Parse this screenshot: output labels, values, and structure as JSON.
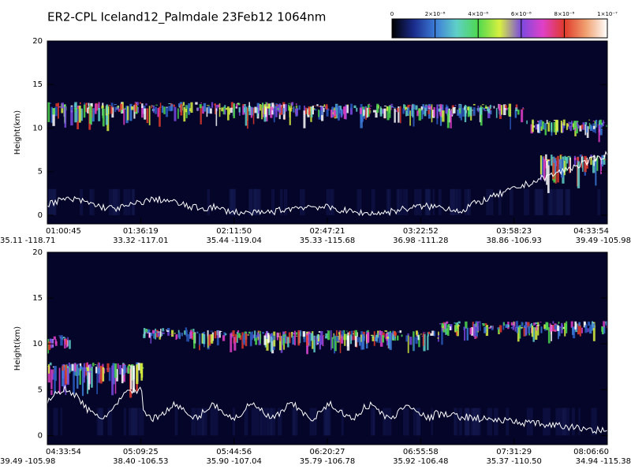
{
  "title": "ER2-CPL Iceland12_Palmdale 23Feb12 1064nm",
  "colorbar": {
    "lim": [
      0,
      1e-07
    ],
    "ticks": [
      0,
      {
        "value": 2e-08,
        "label": "2×10⁻⁸"
      },
      {
        "value": 4e-08,
        "label": "4×10⁻⁸"
      },
      {
        "value": 6e-08,
        "label": "6×10⁻⁸"
      },
      {
        "value": 8e-08,
        "label": "8×10⁻⁸"
      },
      {
        "value": 1e-07,
        "label": "1×10⁻⁷"
      }
    ],
    "colors": [
      "#000000",
      "#1a2a8a",
      "#3c7bd8",
      "#5fd0c8",
      "#4ed84e",
      "#d8f040",
      "#7a4ae0",
      "#e040c8",
      "#e03a2a",
      "#f0a070",
      "#ffffff"
    ]
  },
  "chart_data": [
    {
      "type": "curtain",
      "ylabel": "Height(km)",
      "ylim": [
        -1,
        20
      ],
      "yticks": [
        0,
        5,
        10,
        15,
        20
      ],
      "x_labels": [
        {
          "time": "01:00:45",
          "location": "35.11 -118.71"
        },
        {
          "time": "01:36:19",
          "location": "33.32 -117.01"
        },
        {
          "time": "02:11:50",
          "location": "35.44 -119.04"
        },
        {
          "time": "02:47:21",
          "location": "35.33 -115.68"
        },
        {
          "time": "03:22:52",
          "location": "36.98 -111.28"
        },
        {
          "time": "03:58:23",
          "location": "38.86 -106.93"
        },
        {
          "time": "04:33:54",
          "location": "39.49 -105.98"
        }
      ]
    },
    {
      "type": "curtain",
      "ylabel": "Height(km)",
      "ylim": [
        -1,
        20
      ],
      "yticks": [
        0,
        5,
        10,
        15,
        20
      ],
      "x_labels": [
        {
          "time": "04:33:54",
          "location": "39.49 -105.98"
        },
        {
          "time": "05:09:25",
          "location": "38.40 -106.53"
        },
        {
          "time": "05:44:56",
          "location": "35.90 -107.04"
        },
        {
          "time": "06:20:27",
          "location": "35.79 -106.78"
        },
        {
          "time": "06:55:58",
          "location": "35.92 -106.48"
        },
        {
          "time": "07:31:29",
          "location": "35.37 -110.50"
        },
        {
          "time": "08:06:60",
          "location": "34.94 -115.38"
        }
      ]
    }
  ]
}
